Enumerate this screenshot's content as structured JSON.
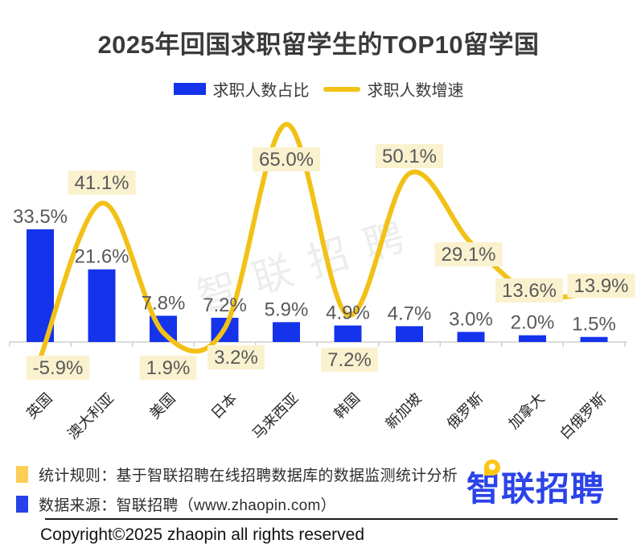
{
  "title": "2025年回国求职留学生的TOP10留学国",
  "legend": {
    "bar_label": "求职人数占比",
    "line_label": "求职人数增速",
    "bar_color": "#1433EB",
    "line_color": "#F2C117"
  },
  "watermark": "智联招聘",
  "chart_data": {
    "type": "bar+line",
    "categories": [
      "英国",
      "澳大利亚",
      "美国",
      "日本",
      "马来西亚",
      "韩国",
      "新加坡",
      "俄罗斯",
      "加拿大",
      "白俄罗斯"
    ],
    "series": [
      {
        "name": "求职人数占比",
        "type": "bar",
        "unit": "%",
        "color": "#1433EB",
        "values": [
          33.5,
          21.6,
          7.8,
          7.2,
          5.9,
          4.9,
          4.7,
          3.0,
          2.0,
          1.5
        ]
      },
      {
        "name": "求职人数增速",
        "type": "line",
        "unit": "%",
        "color": "#F2C117",
        "values": [
          -5.9,
          41.1,
          1.9,
          3.2,
          65.0,
          7.2,
          50.1,
          29.1,
          13.6,
          13.9
        ]
      }
    ],
    "value_label_format": "x.x%",
    "value_label_color": "#595959",
    "line_label_bg": "#FAF2CF",
    "axis_color": "#D0D0D0",
    "grid": false,
    "legend_position": "top",
    "bar_axis_implied_range": [
      0,
      40
    ],
    "line_axis_implied_range": [
      -10,
      70
    ]
  },
  "footer": {
    "rows": [
      {
        "swatch_color": "#FBCF55",
        "text": "统计规则：基于智联招聘在线招聘数据库的数据监测统计分析"
      },
      {
        "swatch_color": "#2742E8",
        "text": "数据来源：智联招聘（www.zhaopin.com）"
      }
    ],
    "logo_text": "智联招聘",
    "logo_color": "#2B43E8",
    "logo_pin_color": "#FFC515"
  },
  "copyright": "Copyright©2025 zhaopin all rights reserved"
}
